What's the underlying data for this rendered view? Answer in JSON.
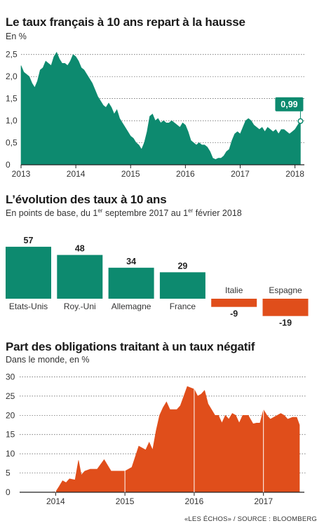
{
  "chart_data": [
    {
      "type": "area",
      "title": "Le taux français à 10 ans repart à la hausse",
      "unit_label": "En %",
      "color": "#0d8a6f",
      "ylim": [
        0,
        2.75
      ],
      "y_ticks": [
        0,
        0.5,
        1.0,
        1.5,
        2.0,
        2.5
      ],
      "y_tick_labels": [
        "0",
        "0,5",
        "1,0",
        "1,5",
        "2,0",
        "2,5"
      ],
      "x_ticks": [
        "2013",
        "2014",
        "2015",
        "2016",
        "2017",
        "2018"
      ],
      "xlim": [
        2013.0,
        2018.12
      ],
      "x": [
        2013.0,
        2013.05,
        2013.1,
        2013.15,
        2013.2,
        2013.25,
        2013.3,
        2013.35,
        2013.4,
        2013.45,
        2013.5,
        2013.55,
        2013.6,
        2013.65,
        2013.7,
        2013.75,
        2013.8,
        2013.85,
        2013.9,
        2013.95,
        2014.0,
        2014.05,
        2014.1,
        2014.15,
        2014.2,
        2014.25,
        2014.3,
        2014.35,
        2014.4,
        2014.45,
        2014.5,
        2014.55,
        2014.6,
        2014.65,
        2014.7,
        2014.75,
        2014.8,
        2014.85,
        2014.9,
        2014.95,
        2015.0,
        2015.05,
        2015.1,
        2015.15,
        2015.2,
        2015.25,
        2015.3,
        2015.35,
        2015.4,
        2015.45,
        2015.5,
        2015.55,
        2015.6,
        2015.65,
        2015.7,
        2015.75,
        2015.8,
        2015.85,
        2015.9,
        2015.95,
        2016.0,
        2016.05,
        2016.1,
        2016.15,
        2016.2,
        2016.25,
        2016.3,
        2016.35,
        2016.4,
        2016.45,
        2016.5,
        2016.55,
        2016.6,
        2016.65,
        2016.7,
        2016.75,
        2016.8,
        2016.85,
        2016.9,
        2016.95,
        2017.0,
        2017.05,
        2017.1,
        2017.15,
        2017.2,
        2017.25,
        2017.3,
        2017.35,
        2017.4,
        2017.45,
        2017.5,
        2017.55,
        2017.6,
        2017.65,
        2017.7,
        2017.75,
        2017.8,
        2017.85,
        2017.9,
        2017.95,
        2018.0,
        2018.05,
        2018.1
      ],
      "values": [
        2.25,
        2.1,
        2.05,
        2.0,
        1.85,
        1.75,
        1.9,
        2.15,
        2.2,
        2.35,
        2.3,
        2.25,
        2.45,
        2.55,
        2.4,
        2.3,
        2.3,
        2.25,
        2.35,
        2.5,
        2.45,
        2.35,
        2.2,
        2.15,
        2.05,
        1.95,
        1.85,
        1.7,
        1.55,
        1.45,
        1.35,
        1.3,
        1.4,
        1.3,
        1.15,
        1.25,
        1.05,
        0.95,
        0.85,
        0.75,
        0.65,
        0.6,
        0.5,
        0.45,
        0.35,
        0.5,
        0.75,
        1.1,
        1.15,
        1.0,
        1.05,
        0.95,
        1.0,
        0.95,
        0.95,
        1.0,
        0.95,
        0.9,
        0.85,
        0.95,
        0.9,
        0.75,
        0.55,
        0.5,
        0.45,
        0.5,
        0.45,
        0.45,
        0.4,
        0.3,
        0.15,
        0.12,
        0.15,
        0.15,
        0.2,
        0.3,
        0.35,
        0.55,
        0.7,
        0.75,
        0.7,
        0.85,
        1.0,
        1.05,
        1.0,
        0.9,
        0.85,
        0.8,
        0.85,
        0.75,
        0.85,
        0.8,
        0.75,
        0.8,
        0.7,
        0.8,
        0.8,
        0.75,
        0.7,
        0.75,
        0.8,
        0.9,
        0.99
      ],
      "last_value_label": "0,99",
      "grid": true
    },
    {
      "type": "bar",
      "title": "L’évolution des taux à 10 ans",
      "subtitle_parts": [
        "En points de base, du 1",
        "er",
        " septembre 2017 au 1",
        "er",
        " février 2018"
      ],
      "categories": [
        "Etats-Unis",
        "Roy.-Uni",
        "Allemagne",
        "France",
        "Italie",
        "Espagne"
      ],
      "values": [
        57,
        48,
        34,
        29,
        -9,
        -19
      ],
      "value_labels": [
        "57",
        "48",
        "34",
        "29",
        "-9",
        "-19"
      ],
      "positive_color": "#0d8a6f",
      "negative_color": "#e04e1b"
    },
    {
      "type": "area",
      "title": "Part des obligations traitant à un taux négatif",
      "unit_label": "Dans le monde, en %",
      "color": "#e04e1b",
      "ylim": [
        0,
        31
      ],
      "y_ticks": [
        0,
        5,
        10,
        15,
        20,
        25,
        30
      ],
      "y_tick_labels": [
        "0",
        "5",
        "10",
        "15",
        "20",
        "25",
        "30"
      ],
      "x_ticks": [
        "2014",
        "2015",
        "2016",
        "2017"
      ],
      "xlim": [
        2013.48,
        2017.55
      ],
      "x": [
        2013.5,
        2013.6,
        2013.7,
        2013.8,
        2013.9,
        2014.0,
        2014.05,
        2014.1,
        2014.15,
        2014.2,
        2014.28,
        2014.33,
        2014.37,
        2014.42,
        2014.5,
        2014.6,
        2014.7,
        2014.8,
        2014.88,
        2014.95,
        2015.0,
        2015.1,
        2015.2,
        2015.3,
        2015.35,
        2015.4,
        2015.45,
        2015.5,
        2015.55,
        2015.6,
        2015.65,
        2015.7,
        2015.75,
        2015.8,
        2015.9,
        2016.0,
        2016.05,
        2016.1,
        2016.15,
        2016.2,
        2016.3,
        2016.35,
        2016.4,
        2016.45,
        2016.5,
        2016.55,
        2016.6,
        2016.65,
        2016.7,
        2016.78,
        2016.85,
        2016.9,
        2016.95,
        2017.0,
        2017.05,
        2017.1,
        2017.15,
        2017.2,
        2017.25,
        2017.3,
        2017.35,
        2017.42,
        2017.48,
        2017.52
      ],
      "values": [
        0,
        0,
        0,
        0,
        0,
        0.1,
        1.5,
        3.0,
        2.5,
        3.5,
        3.2,
        8.3,
        4.5,
        5.5,
        6.0,
        6.0,
        8.5,
        5.5,
        5.5,
        5.5,
        5.5,
        6.5,
        12.0,
        11.0,
        13.0,
        11.0,
        16.0,
        20.0,
        22.0,
        23.5,
        21.5,
        21.5,
        21.5,
        22.5,
        27.5,
        26.8,
        25.0,
        25.5,
        26.5,
        23.0,
        20.0,
        20.0,
        18.0,
        20.0,
        19.0,
        20.5,
        20.0,
        18.0,
        20.0,
        20.0,
        17.8,
        18.0,
        18.0,
        21.5,
        20.0,
        19.0,
        19.5,
        20.0,
        20.5,
        20.0,
        19.0,
        19.5,
        19.5,
        17.5
      ],
      "grid": true
    }
  ],
  "footer": "«LES ÉCHOS» / SOURCE : BLOOMBERG"
}
